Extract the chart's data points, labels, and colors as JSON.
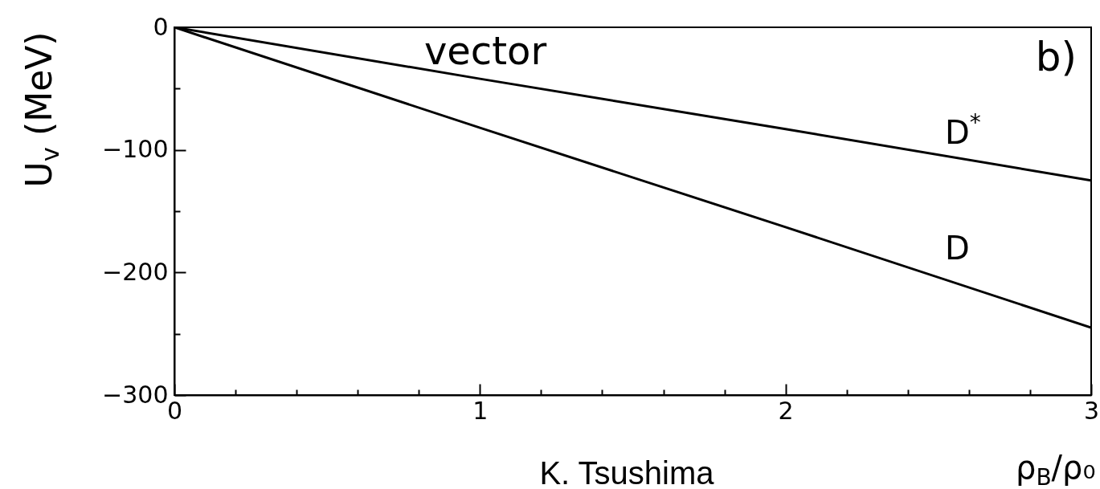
{
  "chart_data": {
    "type": "line",
    "xlabel": "ρ$_{B}$/ρ₀",
    "ylabel": "U$_{v}$ (MeV)",
    "annotations": [
      "vector",
      "b)",
      "K. Tsushima"
    ],
    "x": [
      0,
      1,
      2,
      3
    ],
    "series": [
      {
        "name": "D$^{*}$",
        "color": "#000000",
        "values": [
          0,
          -42,
          -83,
          -125
        ]
      },
      {
        "name": "D",
        "color": "#000000",
        "values": [
          0,
          -82,
          -163,
          -245
        ]
      }
    ],
    "xlim": [
      0,
      3
    ],
    "ylim": [
      -300,
      0
    ],
    "xticks": [
      0,
      {
        "value": 0.2,
        "label": null
      },
      {
        "value": 0.4,
        "label": null
      },
      {
        "value": 0.6,
        "label": null
      },
      {
        "value": 0.8,
        "label": null
      },
      1,
      {
        "value": 1.2,
        "label": null
      },
      {
        "value": 1.4,
        "label": null
      },
      {
        "value": 1.6,
        "label": null
      },
      {
        "value": 1.8,
        "label": null
      },
      2,
      {
        "value": 2.2,
        "label": null
      },
      {
        "value": 2.4,
        "label": null
      },
      {
        "value": 2.6,
        "label": null
      },
      {
        "value": 2.8,
        "label": null
      },
      3
    ],
    "yticks": [
      -300,
      {
        "value": -250,
        "label": null
      },
      -200,
      {
        "value": -150,
        "label": null
      },
      -100,
      {
        "value": -50,
        "label": null
      },
      0
    ],
    "grid": false,
    "line_style": "solid"
  }
}
